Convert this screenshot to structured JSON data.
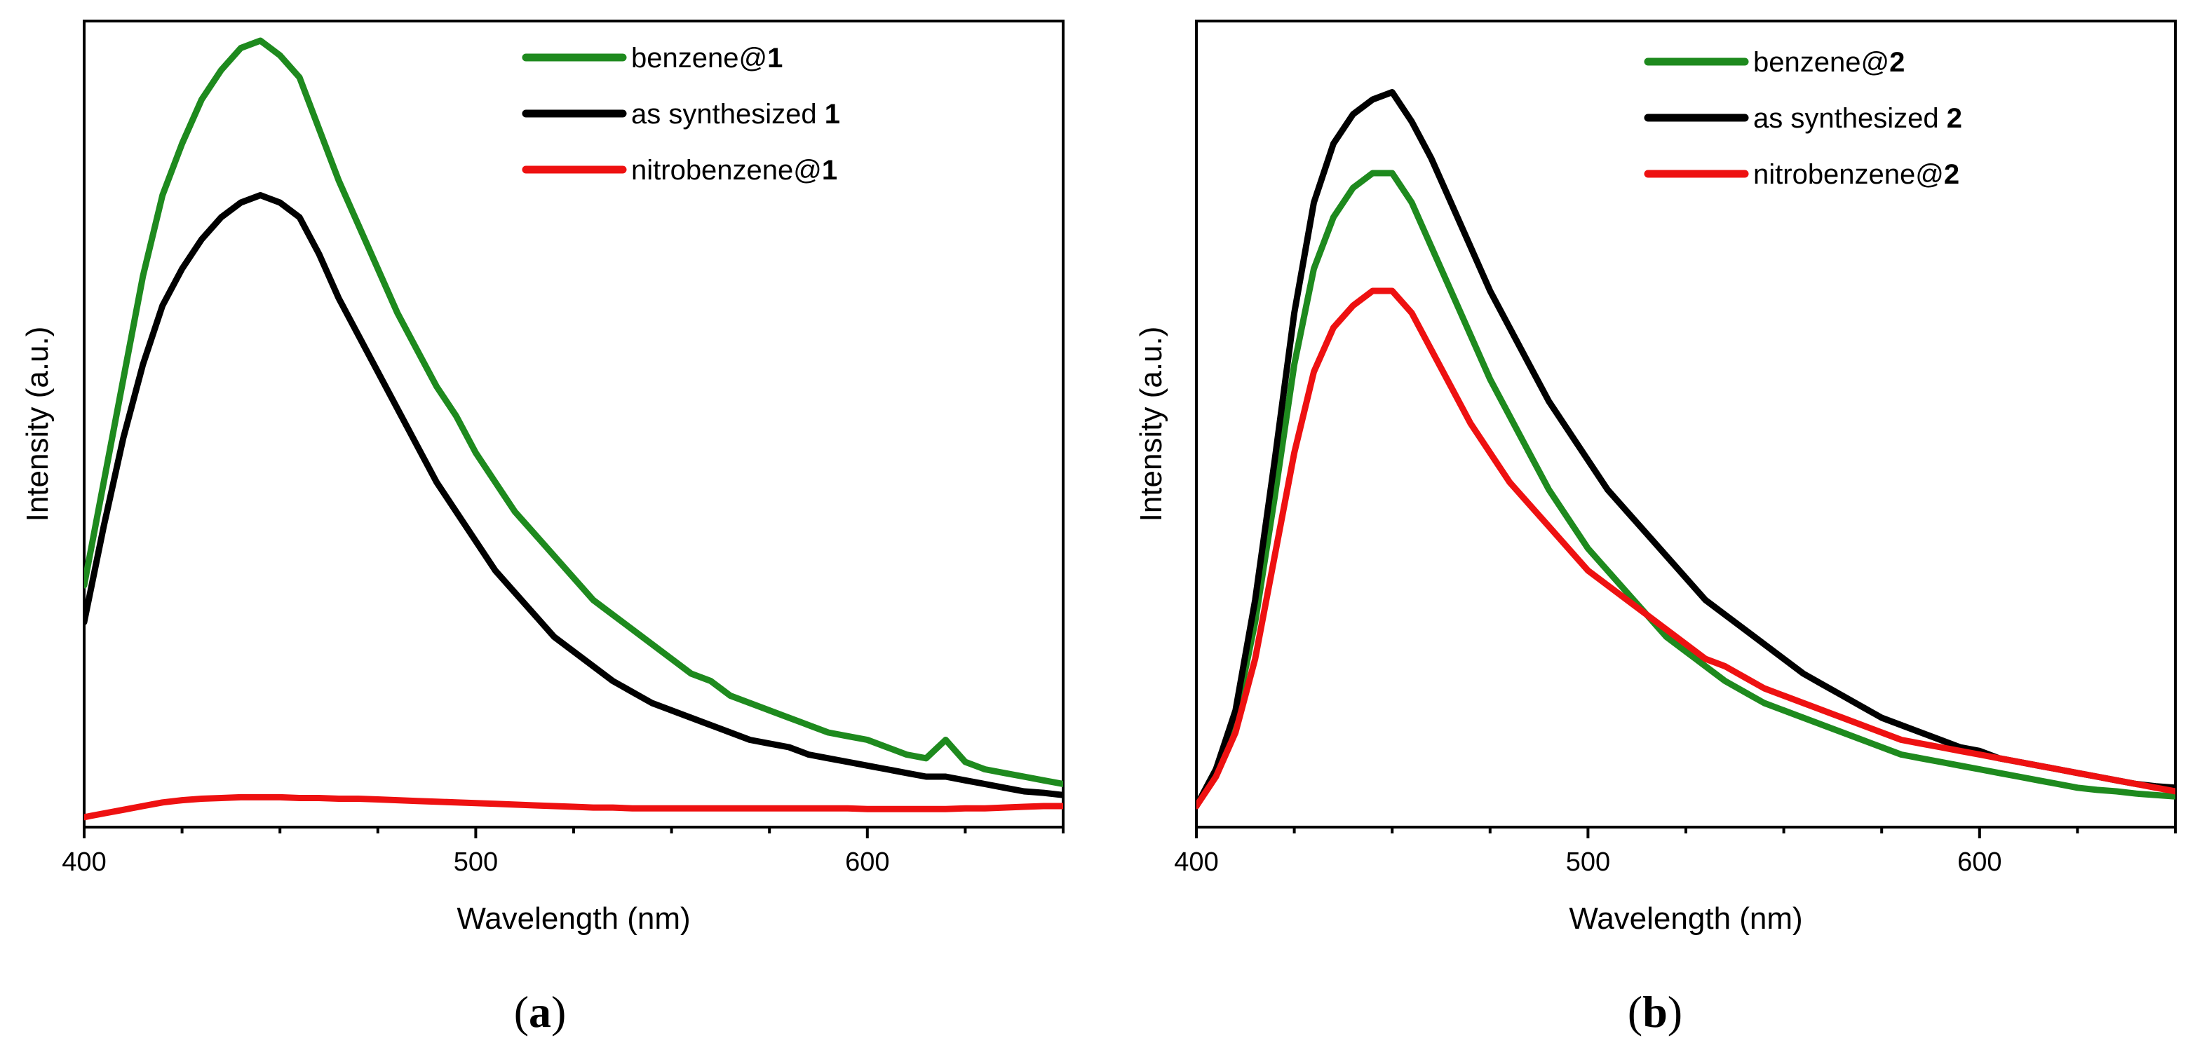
{
  "chart_data": [
    {
      "type": "line",
      "panel_label": "a",
      "compound_number": "1",
      "xlabel": "Wavelength (nm)",
      "ylabel": "Intensity (a.u.)",
      "xlim": [
        400,
        650
      ],
      "ylim": [
        0,
        1.0
      ],
      "x_ticks": [
        400,
        500,
        600
      ],
      "y_ticks_shown": false,
      "legend_position": "top-right",
      "x": [
        400,
        405,
        410,
        415,
        420,
        425,
        430,
        435,
        440,
        445,
        450,
        455,
        460,
        465,
        470,
        475,
        480,
        485,
        490,
        495,
        500,
        505,
        510,
        515,
        520,
        525,
        530,
        535,
        540,
        545,
        550,
        555,
        560,
        565,
        570,
        575,
        580,
        585,
        590,
        595,
        600,
        605,
        610,
        615,
        620,
        625,
        630,
        635,
        640,
        645,
        650
      ],
      "series": [
        {
          "name": "benzene@",
          "label_prefix": "benzene@",
          "label_number": "1",
          "color": "#1e8a1e",
          "values": [
            0.3,
            0.44,
            0.58,
            0.72,
            0.83,
            0.9,
            0.96,
            1.0,
            1.03,
            1.04,
            1.02,
            0.99,
            0.92,
            0.85,
            0.79,
            0.73,
            0.67,
            0.62,
            0.57,
            0.53,
            0.48,
            0.44,
            0.4,
            0.37,
            0.34,
            0.31,
            0.28,
            0.26,
            0.24,
            0.22,
            0.2,
            0.18,
            0.17,
            0.15,
            0.14,
            0.13,
            0.12,
            0.11,
            0.1,
            0.095,
            0.09,
            0.08,
            0.07,
            0.065,
            0.09,
            0.06,
            0.05,
            0.045,
            0.04,
            0.035,
            0.03
          ]
        },
        {
          "name": "as synthesized",
          "label_prefix": "as synthesized ",
          "label_number": "1",
          "color": "#000000",
          "values": [
            0.25,
            0.38,
            0.5,
            0.6,
            0.68,
            0.73,
            0.77,
            0.8,
            0.82,
            0.83,
            0.82,
            0.8,
            0.75,
            0.69,
            0.64,
            0.59,
            0.54,
            0.49,
            0.44,
            0.4,
            0.36,
            0.32,
            0.29,
            0.26,
            0.23,
            0.21,
            0.19,
            0.17,
            0.155,
            0.14,
            0.13,
            0.12,
            0.11,
            0.1,
            0.09,
            0.085,
            0.08,
            0.07,
            0.065,
            0.06,
            0.055,
            0.05,
            0.045,
            0.04,
            0.04,
            0.035,
            0.03,
            0.025,
            0.02,
            0.018,
            0.015
          ]
        },
        {
          "name": "nitrobenzene@",
          "label_prefix": "nitrobenzene@",
          "label_number": "1",
          "color": "#ee1111",
          "values": [
            -0.015,
            -0.01,
            -0.005,
            0.0,
            0.005,
            0.008,
            0.01,
            0.011,
            0.012,
            0.012,
            0.012,
            0.011,
            0.011,
            0.01,
            0.01,
            0.009,
            0.008,
            0.007,
            0.006,
            0.005,
            0.004,
            0.003,
            0.002,
            0.001,
            0.0,
            -0.001,
            -0.002,
            -0.002,
            -0.003,
            -0.003,
            -0.003,
            -0.003,
            -0.003,
            -0.003,
            -0.003,
            -0.003,
            -0.003,
            -0.003,
            -0.003,
            -0.003,
            -0.004,
            -0.004,
            -0.004,
            -0.004,
            -0.004,
            -0.003,
            -0.003,
            -0.002,
            -0.001,
            0.0,
            0.0
          ]
        }
      ]
    },
    {
      "type": "line",
      "panel_label": "b",
      "compound_number": "2",
      "xlabel": "Wavelength (nm)",
      "ylabel": "Intensity (a.u.)",
      "xlim": [
        400,
        650
      ],
      "ylim": [
        0,
        1.0
      ],
      "x_ticks": [
        400,
        500,
        600
      ],
      "y_ticks_shown": false,
      "legend_position": "top-right",
      "x": [
        400,
        405,
        410,
        415,
        420,
        425,
        430,
        435,
        440,
        445,
        450,
        455,
        460,
        465,
        470,
        475,
        480,
        485,
        490,
        495,
        500,
        505,
        510,
        515,
        520,
        525,
        530,
        535,
        540,
        545,
        550,
        555,
        560,
        565,
        570,
        575,
        580,
        585,
        590,
        595,
        600,
        605,
        610,
        615,
        620,
        625,
        630,
        635,
        640,
        645,
        650
      ],
      "series": [
        {
          "name": "benzene@",
          "label_prefix": "benzene@",
          "label_number": "2",
          "color": "#1e8a1e",
          "values": [
            0.0,
            0.05,
            0.12,
            0.25,
            0.42,
            0.6,
            0.73,
            0.8,
            0.84,
            0.86,
            0.86,
            0.82,
            0.76,
            0.7,
            0.64,
            0.58,
            0.53,
            0.48,
            0.43,
            0.39,
            0.35,
            0.32,
            0.29,
            0.26,
            0.23,
            0.21,
            0.19,
            0.17,
            0.155,
            0.14,
            0.13,
            0.12,
            0.11,
            0.1,
            0.09,
            0.08,
            0.07,
            0.065,
            0.06,
            0.055,
            0.05,
            0.045,
            0.04,
            0.035,
            0.03,
            0.025,
            0.022,
            0.02,
            0.017,
            0.015,
            0.013
          ]
        },
        {
          "name": "as synthesized",
          "label_prefix": "as synthesized ",
          "label_number": "2",
          "color": "#000000",
          "values": [
            0.0,
            0.05,
            0.13,
            0.28,
            0.47,
            0.67,
            0.82,
            0.9,
            0.94,
            0.96,
            0.97,
            0.93,
            0.88,
            0.82,
            0.76,
            0.7,
            0.65,
            0.6,
            0.55,
            0.51,
            0.47,
            0.43,
            0.4,
            0.37,
            0.34,
            0.31,
            0.28,
            0.26,
            0.24,
            0.22,
            0.2,
            0.18,
            0.165,
            0.15,
            0.135,
            0.12,
            0.11,
            0.1,
            0.09,
            0.08,
            0.075,
            0.065,
            0.06,
            0.055,
            0.05,
            0.045,
            0.04,
            0.035,
            0.03,
            0.027,
            0.025
          ]
        },
        {
          "name": "nitrobenzene@",
          "label_prefix": "nitrobenzene@",
          "label_number": "2",
          "color": "#ee1111",
          "values": [
            0.0,
            0.04,
            0.1,
            0.2,
            0.34,
            0.48,
            0.59,
            0.65,
            0.68,
            0.7,
            0.7,
            0.67,
            0.62,
            0.57,
            0.52,
            0.48,
            0.44,
            0.41,
            0.38,
            0.35,
            0.32,
            0.3,
            0.28,
            0.26,
            0.24,
            0.22,
            0.2,
            0.19,
            0.175,
            0.16,
            0.15,
            0.14,
            0.13,
            0.12,
            0.11,
            0.1,
            0.09,
            0.085,
            0.08,
            0.075,
            0.07,
            0.065,
            0.06,
            0.055,
            0.05,
            0.045,
            0.04,
            0.035,
            0.03,
            0.025,
            0.02
          ]
        }
      ]
    }
  ]
}
